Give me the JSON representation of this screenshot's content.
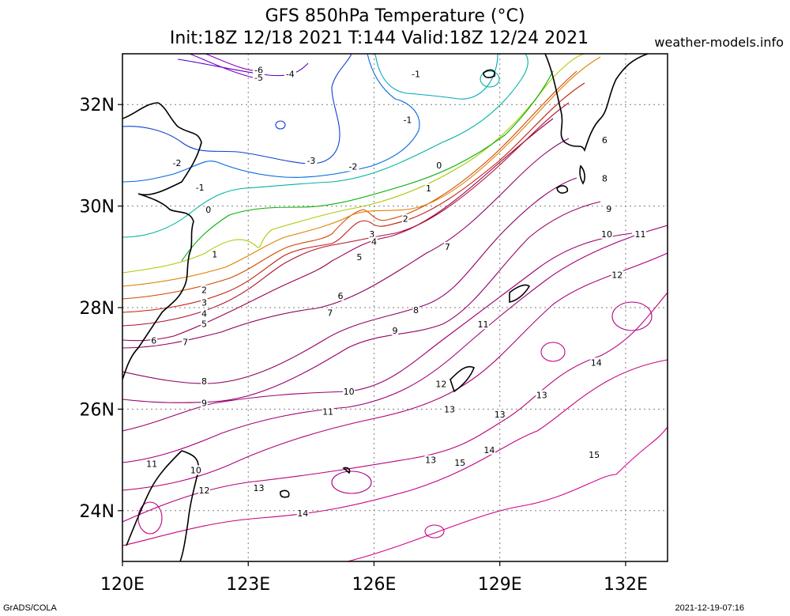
{
  "header": {
    "title_line1": "GFS 850hPa Temperature (°C)",
    "title_line2": "Init:18Z 12/18 2021 T:144 Valid:18Z 12/24 2021",
    "site": "weather-models.info"
  },
  "footer": {
    "left": "GrADS/COLA",
    "right": "2021-12-19-07:16"
  },
  "map": {
    "lat_ticks": [
      {
        "lat": 32,
        "label": "32N"
      },
      {
        "lat": 30,
        "label": "30N"
      },
      {
        "lat": 28,
        "label": "28N"
      },
      {
        "lat": 26,
        "label": "26N"
      },
      {
        "lat": 24,
        "label": "24N"
      }
    ],
    "lon_ticks": [
      {
        "lon": 120,
        "label": "120E"
      },
      {
        "lon": 123,
        "label": "123E"
      },
      {
        "lon": 126,
        "label": "126E"
      },
      {
        "lon": 129,
        "label": "129E"
      },
      {
        "lon": 132,
        "label": "132E"
      }
    ],
    "lon_range": [
      120,
      133
    ],
    "lat_range": [
      23,
      33
    ],
    "grid": true
  },
  "contour_labels": [
    {
      "t": "-6",
      "lon": 123.25,
      "lat": 32.68,
      "c": "#8a00b8"
    },
    {
      "t": "-5",
      "lon": 123.25,
      "lat": 32.53,
      "c": "#8a00b8"
    },
    {
      "t": "-4",
      "lon": 124.0,
      "lat": 32.6,
      "c": "#6a00b8"
    },
    {
      "t": "-3",
      "lon": 124.5,
      "lat": 30.9,
      "c": "#0030d0"
    },
    {
      "t": "-2",
      "lon": 121.3,
      "lat": 30.85,
      "c": "#0060e0"
    },
    {
      "t": "-2",
      "lon": 125.5,
      "lat": 30.78,
      "c": "#0060e0"
    },
    {
      "t": "-1",
      "lon": 121.85,
      "lat": 30.37,
      "c": "#00a0c0"
    },
    {
      "t": "-1",
      "lon": 127.0,
      "lat": 32.6,
      "c": "#00b0a0"
    },
    {
      "t": "-1",
      "lon": 126.8,
      "lat": 31.7,
      "c": "#00b0a0"
    },
    {
      "t": "0",
      "lon": 122.05,
      "lat": 29.93,
      "c": "#00b000"
    },
    {
      "t": "0",
      "lon": 127.55,
      "lat": 30.8,
      "c": "#00b000"
    },
    {
      "t": "1",
      "lon": 122.2,
      "lat": 29.05,
      "c": "#a0c000"
    },
    {
      "t": "1",
      "lon": 127.3,
      "lat": 30.35,
      "c": "#a0c000"
    },
    {
      "t": "2",
      "lon": 121.95,
      "lat": 28.35,
      "c": "#c07000"
    },
    {
      "t": "2",
      "lon": 126.75,
      "lat": 29.75,
      "c": "#c07000"
    },
    {
      "t": "3",
      "lon": 121.95,
      "lat": 28.1,
      "c": "#c04000"
    },
    {
      "t": "3",
      "lon": 125.95,
      "lat": 29.45,
      "c": "#c04000"
    },
    {
      "t": "4",
      "lon": 121.95,
      "lat": 27.88,
      "c": "#b02010"
    },
    {
      "t": "4",
      "lon": 126.0,
      "lat": 29.3,
      "c": "#b02010"
    },
    {
      "t": "5",
      "lon": 121.95,
      "lat": 27.68,
      "c": "#b01030"
    },
    {
      "t": "5",
      "lon": 125.65,
      "lat": 29.0,
      "c": "#b01030"
    },
    {
      "t": "6",
      "lon": 120.75,
      "lat": 27.35,
      "c": "#a00040"
    },
    {
      "t": "6",
      "lon": 125.2,
      "lat": 28.23,
      "c": "#a00040"
    },
    {
      "t": "6",
      "lon": 131.5,
      "lat": 31.3,
      "c": "#a00040"
    },
    {
      "t": "7",
      "lon": 121.5,
      "lat": 27.32,
      "c": "#a00050"
    },
    {
      "t": "7",
      "lon": 124.95,
      "lat": 27.9,
      "c": "#a00050"
    },
    {
      "t": "7",
      "lon": 127.75,
      "lat": 29.2,
      "c": "#a00050"
    },
    {
      "t": "8",
      "lon": 121.95,
      "lat": 26.55,
      "c": "#a00060"
    },
    {
      "t": "8",
      "lon": 127.0,
      "lat": 27.95,
      "c": "#a00060"
    },
    {
      "t": "8",
      "lon": 131.5,
      "lat": 30.55,
      "c": "#a00060"
    },
    {
      "t": "9",
      "lon": 121.95,
      "lat": 26.12,
      "c": "#a00070"
    },
    {
      "t": "9",
      "lon": 126.5,
      "lat": 27.55,
      "c": "#a00070"
    },
    {
      "t": "9",
      "lon": 131.6,
      "lat": 29.95,
      "c": "#a00070"
    },
    {
      "t": "10",
      "lon": 125.4,
      "lat": 26.35,
      "c": "#a00070"
    },
    {
      "t": "10",
      "lon": 131.55,
      "lat": 29.45,
      "c": "#a00070"
    },
    {
      "t": "10",
      "lon": 121.75,
      "lat": 24.8,
      "c": "#a00070"
    },
    {
      "t": "11",
      "lon": 120.7,
      "lat": 24.92,
      "c": "#a00080"
    },
    {
      "t": "11",
      "lon": 124.9,
      "lat": 25.95,
      "c": "#a00080"
    },
    {
      "t": "11",
      "lon": 128.6,
      "lat": 27.67,
      "c": "#a00080"
    },
    {
      "t": "11",
      "lon": 132.35,
      "lat": 29.45,
      "c": "#a00080"
    },
    {
      "t": "12",
      "lon": 121.95,
      "lat": 24.4,
      "c": "#b00080"
    },
    {
      "t": "12",
      "lon": 127.6,
      "lat": 26.5,
      "c": "#b00080"
    },
    {
      "t": "12",
      "lon": 131.8,
      "lat": 28.65,
      "c": "#b00080"
    },
    {
      "t": "13",
      "lon": 123.25,
      "lat": 24.45,
      "c": "#b00080"
    },
    {
      "t": "13",
      "lon": 127.35,
      "lat": 25.0,
      "c": "#b00080"
    },
    {
      "t": "13",
      "lon": 127.8,
      "lat": 26.0,
      "c": "#b00080"
    },
    {
      "t": "13",
      "lon": 129.0,
      "lat": 25.9,
      "c": "#b00080"
    },
    {
      "t": "13",
      "lon": 130.0,
      "lat": 26.28,
      "c": "#b00080"
    },
    {
      "t": "14",
      "lon": 124.3,
      "lat": 23.95,
      "c": "#c00080"
    },
    {
      "t": "14",
      "lon": 128.75,
      "lat": 25.2,
      "c": "#c00080"
    },
    {
      "t": "14",
      "lon": 131.3,
      "lat": 26.92,
      "c": "#c00080"
    },
    {
      "t": "15",
      "lon": 128.05,
      "lat": 24.95,
      "c": "#c00090"
    },
    {
      "t": "15",
      "lon": 131.25,
      "lat": 25.1,
      "c": "#c00090"
    }
  ]
}
